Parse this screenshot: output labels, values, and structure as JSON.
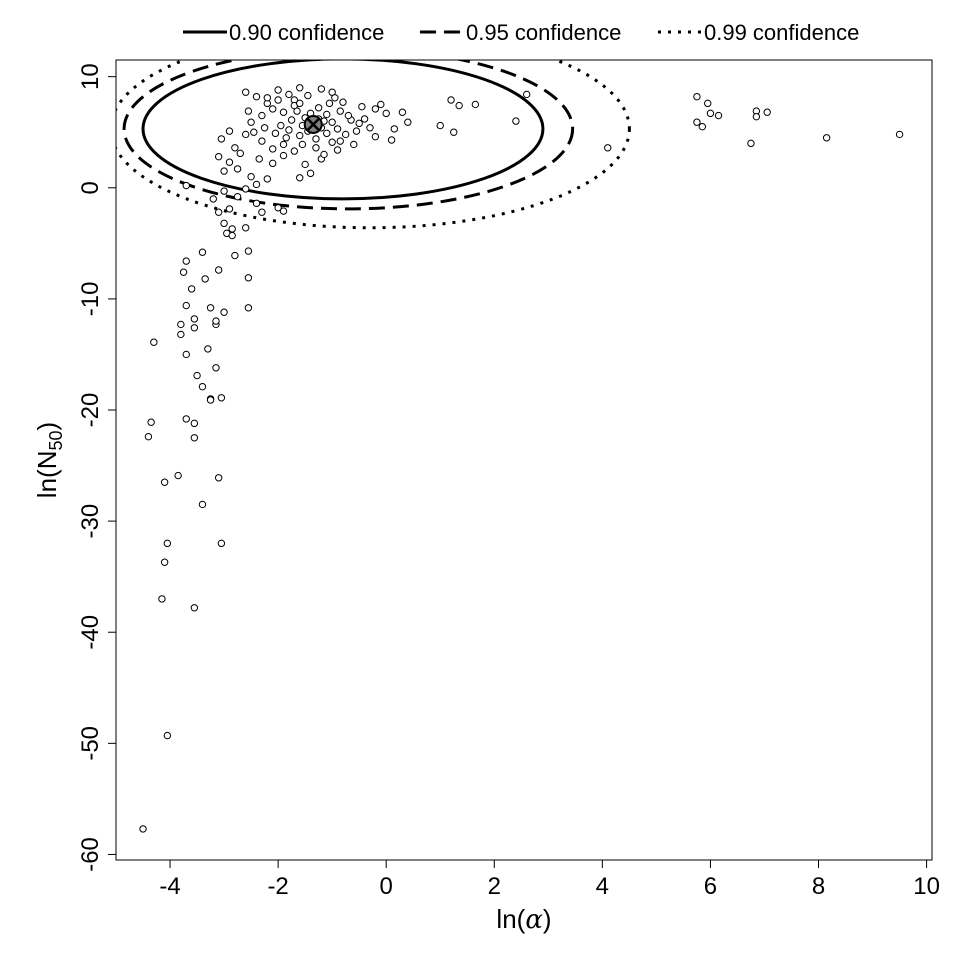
{
  "chart_data": {
    "type": "scatter",
    "xlabel": {
      "prefix": "ln(",
      "symbol": "α",
      "suffix": ")"
    },
    "ylabel": {
      "prefix": "ln(N",
      "subscript": "50",
      "suffix": ")"
    },
    "xlim": [
      -5.0,
      10.1
    ],
    "ylim": [
      -60.5,
      11.5
    ],
    "x_ticks": [
      -4,
      -2,
      0,
      2,
      4,
      6,
      8,
      10
    ],
    "y_ticks": [
      -60,
      -50,
      -40,
      -30,
      -20,
      -10,
      0,
      10
    ],
    "legend": {
      "placement": "top-outside",
      "entries": [
        {
          "label": "0.90 confidence",
          "linestyle": "solid"
        },
        {
          "label": "0.95 confidence",
          "linestyle": "dashed"
        },
        {
          "label": "0.99 confidence",
          "linestyle": "dotted"
        }
      ]
    },
    "best_fit": {
      "x": -1.35,
      "y": 5.7
    },
    "confidence_ellipses": [
      {
        "level": 0.9,
        "center": [
          -0.8,
          5.3
        ],
        "rx": 3.7,
        "ry": 6.3,
        "linestyle": "solid"
      },
      {
        "level": 0.95,
        "center": [
          -0.7,
          5.3
        ],
        "rx": 4.15,
        "ry": 7.2,
        "linestyle": "dashed"
      },
      {
        "level": 0.99,
        "center": [
          -0.3,
          5.3
        ],
        "rx": 4.8,
        "ry": 8.9,
        "linestyle": "dotted"
      }
    ],
    "points": [
      [
        -4.5,
        -57.7
      ],
      [
        -4.05,
        -49.3
      ],
      [
        -4.15,
        -37.0
      ],
      [
        -3.55,
        -37.8
      ],
      [
        -4.1,
        -33.7
      ],
      [
        -4.05,
        -32.0
      ],
      [
        -3.05,
        -32.0
      ],
      [
        -4.1,
        -26.5
      ],
      [
        -3.85,
        -25.9
      ],
      [
        -3.4,
        -28.5
      ],
      [
        -3.1,
        -26.1
      ],
      [
        -4.4,
        -22.4
      ],
      [
        -4.35,
        -21.1
      ],
      [
        -3.7,
        -20.8
      ],
      [
        -3.55,
        -21.2
      ],
      [
        -3.55,
        -22.5
      ],
      [
        -3.25,
        -19.0
      ],
      [
        -3.25,
        -19.1
      ],
      [
        -3.05,
        -18.9
      ],
      [
        -3.4,
        -17.9
      ],
      [
        -3.5,
        -16.9
      ],
      [
        -3.15,
        -16.2
      ],
      [
        -3.3,
        -14.5
      ],
      [
        -3.7,
        -15.0
      ],
      [
        -4.3,
        -13.9
      ],
      [
        -3.8,
        -13.2
      ],
      [
        -3.8,
        -12.3
      ],
      [
        -3.55,
        -12.6
      ],
      [
        -3.55,
        -11.8
      ],
      [
        -3.15,
        -12.3
      ],
      [
        -3.15,
        -12.0
      ],
      [
        -3.25,
        -10.8
      ],
      [
        -3.0,
        -11.2
      ],
      [
        -2.55,
        -10.8
      ],
      [
        -3.7,
        -10.6
      ],
      [
        -3.6,
        -9.1
      ],
      [
        -3.75,
        -7.6
      ],
      [
        -3.7,
        -6.6
      ],
      [
        -3.4,
        -5.8
      ],
      [
        -3.35,
        -8.2
      ],
      [
        -3.1,
        -7.4
      ],
      [
        -2.8,
        -6.1
      ],
      [
        -2.55,
        -5.7
      ],
      [
        -2.55,
        -8.1
      ],
      [
        -2.95,
        -4.1
      ],
      [
        -2.85,
        -3.7
      ],
      [
        -2.85,
        -4.3
      ],
      [
        -3.0,
        -3.2
      ],
      [
        -2.6,
        -3.6
      ],
      [
        -3.1,
        -2.2
      ],
      [
        -2.9,
        -1.9
      ],
      [
        -3.2,
        -1.0
      ],
      [
        -2.75,
        -0.8
      ],
      [
        -3.0,
        -0.3
      ],
      [
        -2.6,
        -0.1
      ],
      [
        -2.4,
        -1.4
      ],
      [
        -2.3,
        -2.2
      ],
      [
        -2.0,
        -1.8
      ],
      [
        -1.9,
        -2.1
      ],
      [
        -2.4,
        0.3
      ],
      [
        -2.5,
        1.0
      ],
      [
        -2.2,
        0.8
      ],
      [
        -3.7,
        0.2
      ],
      [
        -3.0,
        1.5
      ],
      [
        -2.9,
        2.3
      ],
      [
        -2.75,
        1.7
      ],
      [
        -3.1,
        2.8
      ],
      [
        -3.05,
        4.4
      ],
      [
        -2.9,
        5.1
      ],
      [
        -2.8,
        3.6
      ],
      [
        -2.6,
        4.8
      ],
      [
        -2.7,
        3.1
      ],
      [
        -1.6,
        0.9
      ],
      [
        -1.4,
        1.3
      ],
      [
        -1.2,
        2.6
      ],
      [
        -0.9,
        3.4
      ],
      [
        -0.6,
        3.9
      ],
      [
        -0.5,
        5.8
      ],
      [
        -0.2,
        4.6
      ],
      [
        0.1,
        4.3
      ],
      [
        0.3,
        6.8
      ],
      [
        0.4,
        5.9
      ],
      [
        0.0,
        6.7
      ],
      [
        -0.2,
        7.1
      ],
      [
        -0.1,
        7.5
      ],
      [
        -0.45,
        7.3
      ],
      [
        -0.8,
        7.7
      ],
      [
        -1.0,
        8.6
      ],
      [
        -1.2,
        8.9
      ],
      [
        -1.6,
        9.0
      ],
      [
        -2.0,
        8.8
      ],
      [
        -2.6,
        8.6
      ],
      [
        -2.4,
        8.2
      ],
      [
        -2.2,
        7.6
      ],
      [
        -1.7,
        7.9
      ],
      [
        -1.45,
        8.3
      ],
      [
        -0.85,
        6.9
      ],
      [
        -0.65,
        6.1
      ],
      [
        -0.9,
        5.3
      ],
      [
        -1.1,
        4.9
      ],
      [
        -1.3,
        4.4
      ],
      [
        -1.55,
        3.9
      ],
      [
        -1.7,
        3.3
      ],
      [
        -1.9,
        2.9
      ],
      [
        -2.1,
        3.5
      ],
      [
        -2.3,
        4.2
      ],
      [
        -2.45,
        5.0
      ],
      [
        -2.5,
        5.9
      ],
      [
        -2.3,
        6.5
      ],
      [
        -2.1,
        7.1
      ],
      [
        -1.9,
        6.8
      ],
      [
        -1.8,
        5.2
      ],
      [
        -1.6,
        4.7
      ],
      [
        -1.45,
        5.1
      ],
      [
        -1.25,
        6.2
      ],
      [
        -1.1,
        6.6
      ],
      [
        -1.0,
        5.9
      ],
      [
        -1.2,
        5.4
      ],
      [
        -1.5,
        6.3
      ],
      [
        -1.65,
        6.9
      ],
      [
        -1.75,
        6.1
      ],
      [
        -1.95,
        5.6
      ],
      [
        -2.05,
        4.9
      ],
      [
        -1.85,
        4.5
      ],
      [
        -1.55,
        5.6
      ],
      [
        -1.35,
        5.9
      ],
      [
        -1.15,
        6.0
      ],
      [
        -1.4,
        6.7
      ],
      [
        -1.7,
        7.4
      ],
      [
        -2.0,
        7.9
      ],
      [
        -2.25,
        5.4
      ],
      [
        -2.55,
        6.9
      ],
      [
        -1.05,
        7.6
      ],
      [
        -0.7,
        6.5
      ],
      [
        -0.4,
        6.2
      ],
      [
        -0.3,
        5.4
      ],
      [
        -0.75,
        4.8
      ],
      [
        -1.0,
        4.1
      ],
      [
        -1.3,
        3.6
      ],
      [
        -2.1,
        2.2
      ],
      [
        -2.35,
        2.6
      ],
      [
        -1.5,
        2.1
      ],
      [
        -1.15,
        3.0
      ],
      [
        -0.85,
        4.2
      ],
      [
        0.15,
        5.3
      ],
      [
        -0.55,
        5.1
      ],
      [
        -1.9,
        3.9
      ],
      [
        -1.25,
        7.2
      ],
      [
        -0.95,
        8.1
      ],
      [
        -1.8,
        8.4
      ],
      [
        -2.2,
        8.1
      ],
      [
        -1.6,
        7.6
      ],
      [
        1.0,
        5.6
      ],
      [
        1.2,
        7.9
      ],
      [
        1.35,
        7.4
      ],
      [
        1.25,
        5.0
      ],
      [
        1.65,
        7.5
      ],
      [
        2.4,
        6.0
      ],
      [
        2.6,
        8.4
      ],
      [
        4.1,
        3.6
      ],
      [
        5.75,
        8.2
      ],
      [
        5.95,
        7.6
      ],
      [
        5.75,
        5.9
      ],
      [
        5.85,
        5.5
      ],
      [
        6.0,
        6.7
      ],
      [
        6.15,
        6.5
      ],
      [
        6.75,
        4.0
      ],
      [
        6.85,
        6.9
      ],
      [
        6.85,
        6.4
      ],
      [
        7.05,
        6.8
      ],
      [
        8.15,
        4.5
      ],
      [
        9.5,
        4.8
      ]
    ]
  }
}
